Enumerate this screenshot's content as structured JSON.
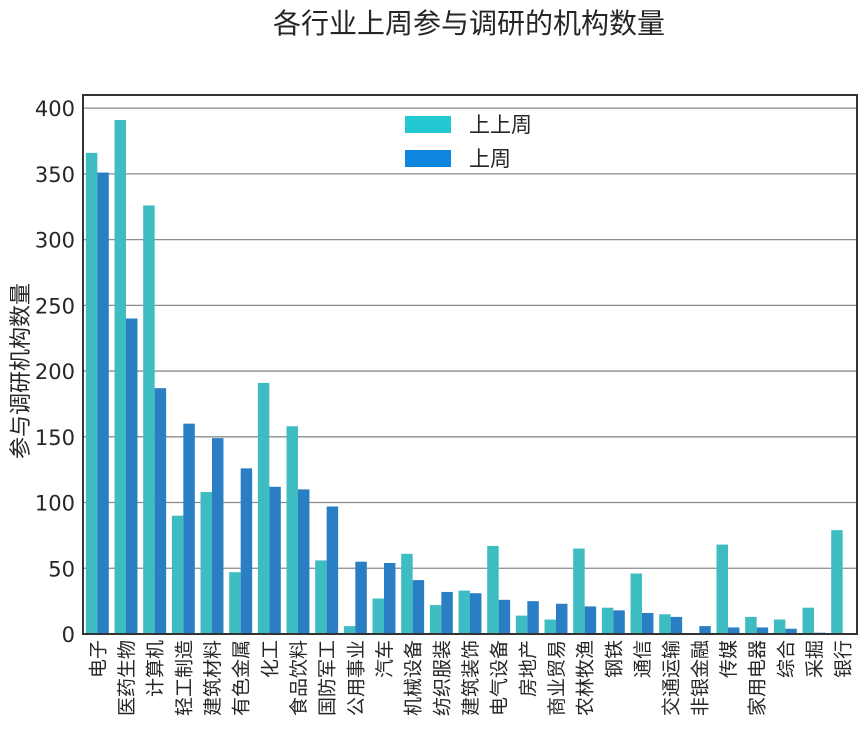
{
  "chart_data": {
    "type": "bar",
    "title": "各行业上周参与调研的机构数量",
    "xlabel": "",
    "ylabel": "参与调研机构数量",
    "ylim": [
      0,
      410
    ],
    "yticks": [
      0,
      50,
      100,
      150,
      200,
      250,
      300,
      350,
      400
    ],
    "grid": true,
    "legend_position": "top-center",
    "categories": [
      "电子",
      "医药生物",
      "计算机",
      "轻工制造",
      "建筑材料",
      "有色金属",
      "化工",
      "食品饮料",
      "国防军工",
      "公用事业",
      "汽车",
      "机械设备",
      "纺织服装",
      "建筑装饰",
      "电气设备",
      "房地产",
      "商业贸易",
      "农林牧渔",
      "钢铁",
      "通信",
      "交通运输",
      "非银金融",
      "传媒",
      "家用电器",
      "综合",
      "采掘",
      "银行"
    ],
    "series": [
      {
        "name": "上上周",
        "color": "#3dbcc2",
        "values": [
          366,
          391,
          326,
          90,
          108,
          47,
          191,
          158,
          56,
          6,
          27,
          61,
          22,
          33,
          67,
          14,
          11,
          65,
          20,
          46,
          15,
          0,
          68,
          13,
          11,
          20,
          79
        ]
      },
      {
        "name": "上周",
        "color": "#2a7fc4",
        "values": [
          351,
          240,
          187,
          160,
          149,
          126,
          112,
          110,
          97,
          55,
          54,
          41,
          32,
          31,
          26,
          25,
          23,
          21,
          18,
          16,
          13,
          6,
          5,
          5,
          4,
          1,
          0
        ]
      }
    ],
    "legend_colors": [
      "#22c9d3",
      "#0e86e0"
    ]
  }
}
